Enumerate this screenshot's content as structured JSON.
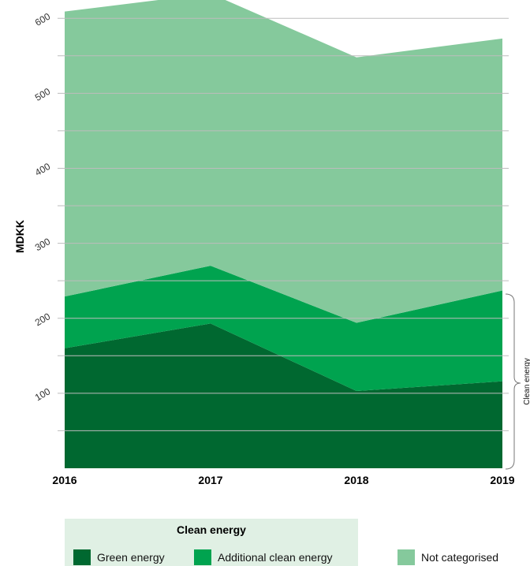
{
  "chart_data": {
    "type": "area",
    "stacked": true,
    "x": [
      "2016",
      "2017",
      "2018",
      "2019"
    ],
    "ylabel": "MDKK",
    "y_ticks": [
      100,
      200,
      300,
      400,
      500,
      600
    ],
    "ylim": [
      0,
      630
    ],
    "grid": true,
    "series": [
      {
        "name": "Green energy",
        "values": [
          160,
          193,
          103,
          116
        ],
        "color": "#006830"
      },
      {
        "name": "Additional clean energy",
        "values": [
          69,
          77,
          91,
          121
        ],
        "color": "#00a34f"
      },
      {
        "name": "Not categorised",
        "values": [
          380,
          363,
          354,
          336
        ],
        "color": "#85c99c"
      }
    ],
    "annotation": "Clean energy",
    "legend": {
      "group_title": "Clean energy",
      "placement": "bottom",
      "group_background": "#e0f0e4"
    }
  }
}
